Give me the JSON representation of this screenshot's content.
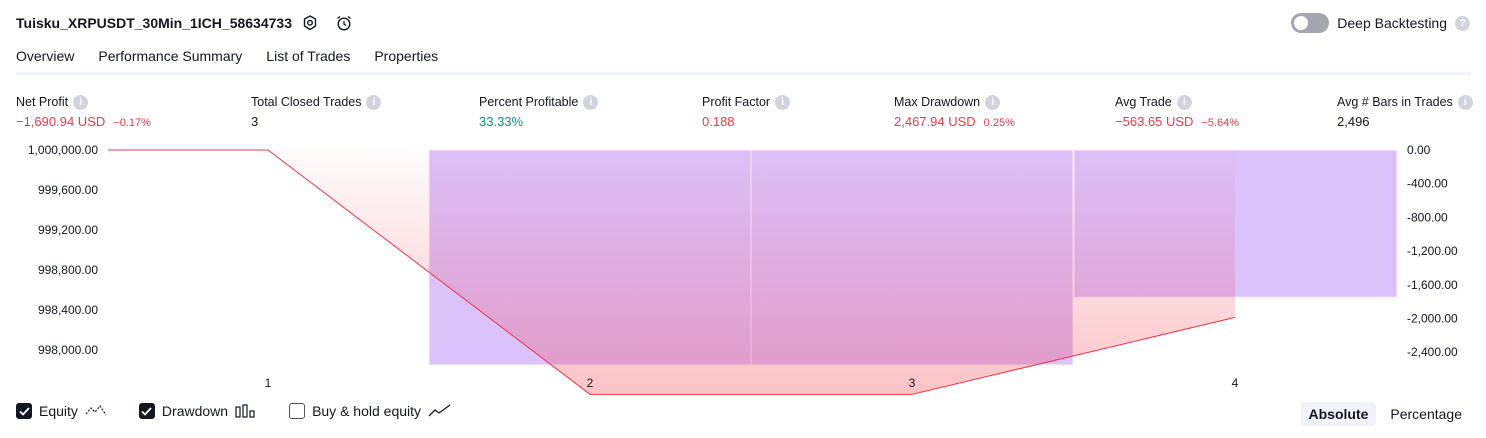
{
  "header": {
    "title": "Tuisku_XRPUSDT_30Min_1ICH_58634733",
    "deep_backtesting_label": "Deep Backtesting",
    "qmark": "?"
  },
  "tabs": [
    {
      "label": "Overview"
    },
    {
      "label": "Performance Summary"
    },
    {
      "label": "List of Trades"
    },
    {
      "label": "Properties"
    }
  ],
  "stats": {
    "net_profit": {
      "label": "Net Profit",
      "value": "−1,690.94 USD",
      "pct": "−0.17%"
    },
    "total_closed_trades": {
      "label": "Total Closed Trades",
      "value": "3"
    },
    "percent_profitable": {
      "label": "Percent Profitable",
      "value": "33.33%"
    },
    "profit_factor": {
      "label": "Profit Factor",
      "value": "0.188"
    },
    "max_drawdown": {
      "label": "Max Drawdown",
      "value": "2,467.94 USD",
      "pct": "0.25%"
    },
    "avg_trade": {
      "label": "Avg Trade",
      "value": "−563.65 USD",
      "pct": "−5.64%"
    },
    "avg_bars": {
      "label": "Avg # Bars in Trades",
      "value": "2,496"
    }
  },
  "chart_data": {
    "type": "line",
    "x": [
      1,
      2,
      3,
      4
    ],
    "left_axis": {
      "ticks": [
        "1,000,000.00",
        "999,600.00",
        "999,200.00",
        "998,800.00",
        "998,400.00",
        "998,000.00"
      ],
      "ylim": [
        998000,
        1000000
      ]
    },
    "right_axis": {
      "ticks": [
        "0.00",
        "-400.00",
        "-800.00",
        "-1,200.00",
        "-1,600.00",
        "-2,000.00",
        "-2,400.00"
      ],
      "ylim": [
        -2400,
        0
      ]
    },
    "series": [
      {
        "name": "Equity",
        "values": [
          1000000,
          997532,
          997532,
          998309
        ],
        "color": "#f23645"
      },
      {
        "name": "Drawdown",
        "type": "bar",
        "values": [
          0,
          -2467.94,
          -2467.94,
          -1690.94
        ],
        "color": "#b388ff"
      }
    ],
    "x_tick_labels": [
      "1",
      "2",
      "3",
      "4"
    ]
  },
  "legend": [
    {
      "label": "Equity",
      "checked": true
    },
    {
      "label": "Drawdown",
      "checked": true
    },
    {
      "label": "Buy & hold equity",
      "checked": false
    }
  ],
  "mode": {
    "absolute": "Absolute",
    "percentage": "Percentage"
  }
}
